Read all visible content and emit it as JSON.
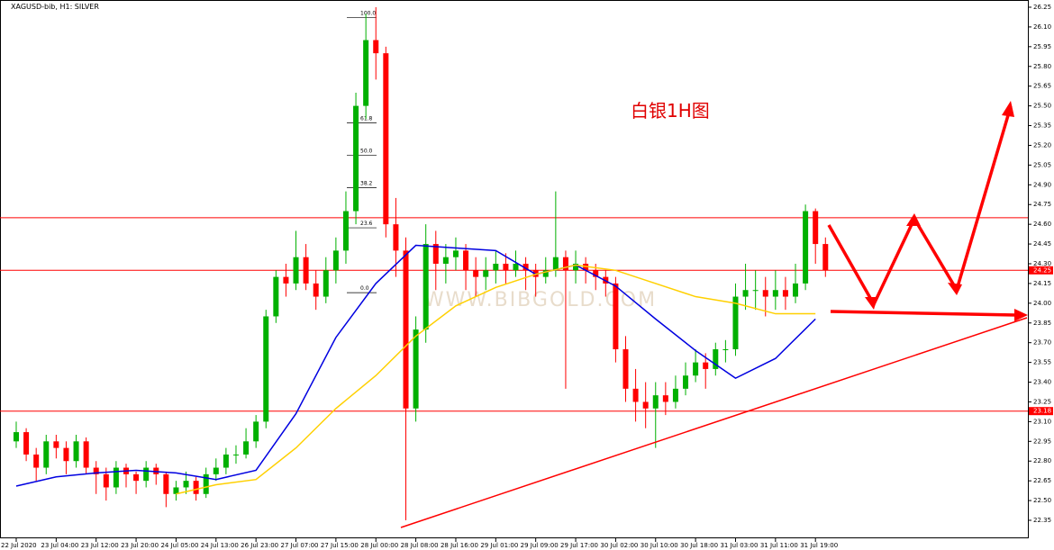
{
  "chart_data": {
    "type": "candlestick",
    "title": "XAGUSD-bib, H1:  SILVER",
    "annotation": "白银1H图",
    "watermark": "WWW.BIBGOLD.COM",
    "categories": [
      "22 Jul 2020",
      null,
      null,
      null,
      "23 Jul 04:00",
      null,
      null,
      null,
      "23 Jul 12:00",
      null,
      null,
      null,
      "23 Jul 20:00",
      null,
      null,
      null,
      "24 Jul 05:00",
      null,
      null,
      null,
      "24 Jul 13:00",
      null,
      null,
      null,
      "26 Jul 23:00",
      null,
      null,
      null,
      "27 Jul 07:00",
      null,
      null,
      null,
      "27 Jul 15:00",
      null,
      null,
      null,
      "28 Jul 00:00",
      null,
      null,
      null,
      "28 Jul 08:00",
      null,
      null,
      null,
      "28 Jul 16:00",
      null,
      null,
      null,
      "29 Jul 01:00",
      null,
      null,
      null,
      "29 Jul 09:00",
      null,
      null,
      null,
      "29 Jul 17:00",
      null,
      null,
      null,
      "30 Jul 02:00",
      null,
      null,
      null,
      "30 Jul 10:00",
      null,
      null,
      null,
      "30 Jul 18:00",
      null,
      null,
      null,
      "31 Jul 03:00",
      null,
      null,
      null,
      "31 Jul 11:00",
      null,
      null,
      null,
      "31 Jul 19:00",
      null
    ],
    "ohlc": [
      [
        22.95,
        23.1,
        22.9,
        23.02
      ],
      [
        23.02,
        23.05,
        22.8,
        22.85
      ],
      [
        22.85,
        22.9,
        22.65,
        22.75
      ],
      [
        22.75,
        23.0,
        22.7,
        22.95
      ],
      [
        22.95,
        23.0,
        22.82,
        22.9
      ],
      [
        22.9,
        22.95,
        22.7,
        22.8
      ],
      [
        22.8,
        23.0,
        22.75,
        22.95
      ],
      [
        22.95,
        22.98,
        22.7,
        22.75
      ],
      [
        22.75,
        22.8,
        22.55,
        22.7
      ],
      [
        22.7,
        22.75,
        22.5,
        22.6
      ],
      [
        22.6,
        22.8,
        22.55,
        22.75
      ],
      [
        22.75,
        22.78,
        22.6,
        22.7
      ],
      [
        22.7,
        22.72,
        22.55,
        22.65
      ],
      [
        22.65,
        22.8,
        22.6,
        22.75
      ],
      [
        22.75,
        22.78,
        22.62,
        22.7
      ],
      [
        22.7,
        22.72,
        22.45,
        22.55
      ],
      [
        22.55,
        22.65,
        22.5,
        22.6
      ],
      [
        22.6,
        22.72,
        22.55,
        22.65
      ],
      [
        22.65,
        22.68,
        22.5,
        22.55
      ],
      [
        22.55,
        22.75,
        22.52,
        22.7
      ],
      [
        22.7,
        22.82,
        22.65,
        22.75
      ],
      [
        22.75,
        22.9,
        22.7,
        22.85
      ],
      [
        22.85,
        22.92,
        22.78,
        22.85
      ],
      [
        22.85,
        23.05,
        22.82,
        22.95
      ],
      [
        22.95,
        23.15,
        22.9,
        23.1
      ],
      [
        23.1,
        23.95,
        23.05,
        23.9
      ],
      [
        23.9,
        24.25,
        23.85,
        24.2
      ],
      [
        24.2,
        24.3,
        24.05,
        24.15
      ],
      [
        24.15,
        24.55,
        24.1,
        24.35
      ],
      [
        24.35,
        24.45,
        24.1,
        24.15
      ],
      [
        24.15,
        24.25,
        23.95,
        24.05
      ],
      [
        24.05,
        24.35,
        24.0,
        24.25
      ],
      [
        24.25,
        24.5,
        24.15,
        24.4
      ],
      [
        24.4,
        24.85,
        24.3,
        24.7
      ],
      [
        24.7,
        25.6,
        24.6,
        25.5
      ],
      [
        25.5,
        26.2,
        25.4,
        26.0
      ],
      [
        26.0,
        26.25,
        25.7,
        25.9
      ],
      [
        25.9,
        25.95,
        24.5,
        24.6
      ],
      [
        24.6,
        24.8,
        24.2,
        24.4
      ],
      [
        24.4,
        24.5,
        22.35,
        23.2
      ],
      [
        23.2,
        23.9,
        23.1,
        23.8
      ],
      [
        23.8,
        24.6,
        23.7,
        24.45
      ],
      [
        24.45,
        24.55,
        24.1,
        24.3
      ],
      [
        24.3,
        24.45,
        24.15,
        24.35
      ],
      [
        24.35,
        24.5,
        24.25,
        24.4
      ],
      [
        24.4,
        24.45,
        24.1,
        24.25
      ],
      [
        24.25,
        24.35,
        24.05,
        24.2
      ],
      [
        24.2,
        24.35,
        24.1,
        24.25
      ],
      [
        24.25,
        24.4,
        24.15,
        24.3
      ],
      [
        24.3,
        24.38,
        24.15,
        24.25
      ],
      [
        24.25,
        24.4,
        24.2,
        24.3
      ],
      [
        24.3,
        24.35,
        24.1,
        24.25
      ],
      [
        24.25,
        24.3,
        24.05,
        24.2
      ],
      [
        24.2,
        24.35,
        24.15,
        24.25
      ],
      [
        24.25,
        24.85,
        24.2,
        24.35
      ],
      [
        24.35,
        24.4,
        23.35,
        24.25
      ],
      [
        24.25,
        24.4,
        24.15,
        24.3
      ],
      [
        24.3,
        24.35,
        24.15,
        24.25
      ],
      [
        24.25,
        24.3,
        24.1,
        24.2
      ],
      [
        24.2,
        24.25,
        24.05,
        24.15
      ],
      [
        24.15,
        24.2,
        23.55,
        23.65
      ],
      [
        23.65,
        23.75,
        23.25,
        23.35
      ],
      [
        23.35,
        23.5,
        23.1,
        23.25
      ],
      [
        23.25,
        23.4,
        23.05,
        23.2
      ],
      [
        23.2,
        23.4,
        22.9,
        23.3
      ],
      [
        23.3,
        23.4,
        23.15,
        23.25
      ],
      [
        23.25,
        23.45,
        23.2,
        23.35
      ],
      [
        23.35,
        23.55,
        23.3,
        23.45
      ],
      [
        23.45,
        23.65,
        23.4,
        23.55
      ],
      [
        23.55,
        23.62,
        23.35,
        23.5
      ],
      [
        23.5,
        23.7,
        23.45,
        23.65
      ],
      [
        23.65,
        23.72,
        23.55,
        23.65
      ],
      [
        23.65,
        24.15,
        23.6,
        24.05
      ],
      [
        24.05,
        24.3,
        23.95,
        24.1
      ],
      [
        24.1,
        24.25,
        23.95,
        24.1
      ],
      [
        24.1,
        24.2,
        23.9,
        24.05
      ],
      [
        24.05,
        24.25,
        23.95,
        24.1
      ],
      [
        24.1,
        24.2,
        23.95,
        24.05
      ],
      [
        24.05,
        24.3,
        24.0,
        24.15
      ],
      [
        24.15,
        24.75,
        24.1,
        24.7
      ],
      [
        24.7,
        24.72,
        24.3,
        24.45
      ],
      [
        24.45,
        24.5,
        24.2,
        24.25
      ]
    ],
    "up_color": "#00b000",
    "down_color": "#ff0000",
    "series": [
      {
        "color": "#0000e0",
        "x": [
          0,
          4,
          8,
          12,
          16,
          20,
          24,
          28,
          32,
          36,
          40,
          44,
          48,
          52,
          56,
          60,
          64,
          68,
          72,
          76,
          80
        ],
        "values": [
          22.61,
          22.68,
          22.71,
          22.73,
          22.71,
          22.66,
          22.73,
          23.16,
          23.74,
          24.15,
          24.44,
          24.42,
          24.4,
          24.22,
          24.29,
          24.13,
          23.88,
          23.64,
          23.43,
          23.58,
          23.88
        ]
      },
      {
        "color": "#ffd000",
        "x": [
          16,
          20,
          24,
          28,
          32,
          36,
          40,
          44,
          48,
          52,
          56,
          60,
          64,
          68,
          72,
          76,
          80
        ],
        "values": [
          22.55,
          22.62,
          22.66,
          22.9,
          23.2,
          23.45,
          23.75,
          23.98,
          24.12,
          24.22,
          24.29,
          24.25,
          24.15,
          24.05,
          24.0,
          23.92,
          23.92
        ]
      }
    ],
    "hlines": [
      24.65
    ],
    "marked_levels": [
      24.25,
      23.18
    ],
    "level_color": "#ff0000",
    "fib": {
      "high": 26.17,
      "low": 24.08,
      "levels": [
        {
          "value": 100,
          "label": "100.0"
        },
        61.8,
        {
          "value": 50,
          "label": "50.0"
        },
        38.2,
        23.6,
        {
          "value": 0,
          "label": "0.0"
        }
      ]
    },
    "ylim": [
      22.35,
      26.25
    ],
    "yticks": [
      26.25,
      {
        "value": 26.1,
        "label": "26.10"
      },
      25.95,
      {
        "value": 25.8,
        "label": "25.80"
      },
      25.65,
      {
        "value": 25.5,
        "label": "25.50"
      },
      25.35,
      {
        "value": 25.2,
        "label": "25.20"
      },
      25.05,
      {
        "value": 24.9,
        "label": "24.90"
      },
      24.75,
      {
        "value": 24.6,
        "label": "24.60"
      },
      24.45,
      {
        "value": 24.3,
        "label": "24.30"
      },
      24.15,
      {
        "value": 24,
        "label": "24.00"
      },
      23.85,
      {
        "value": 23.7,
        "label": "23.70"
      },
      23.55,
      {
        "value": 23.4,
        "label": "23.40"
      },
      23.25,
      {
        "value": 23.1,
        "label": "23.10"
      },
      22.95,
      {
        "value": 22.8,
        "label": "22.80"
      },
      22.65,
      {
        "value": 22.5,
        "label": "22.50"
      },
      22.35
    ]
  }
}
